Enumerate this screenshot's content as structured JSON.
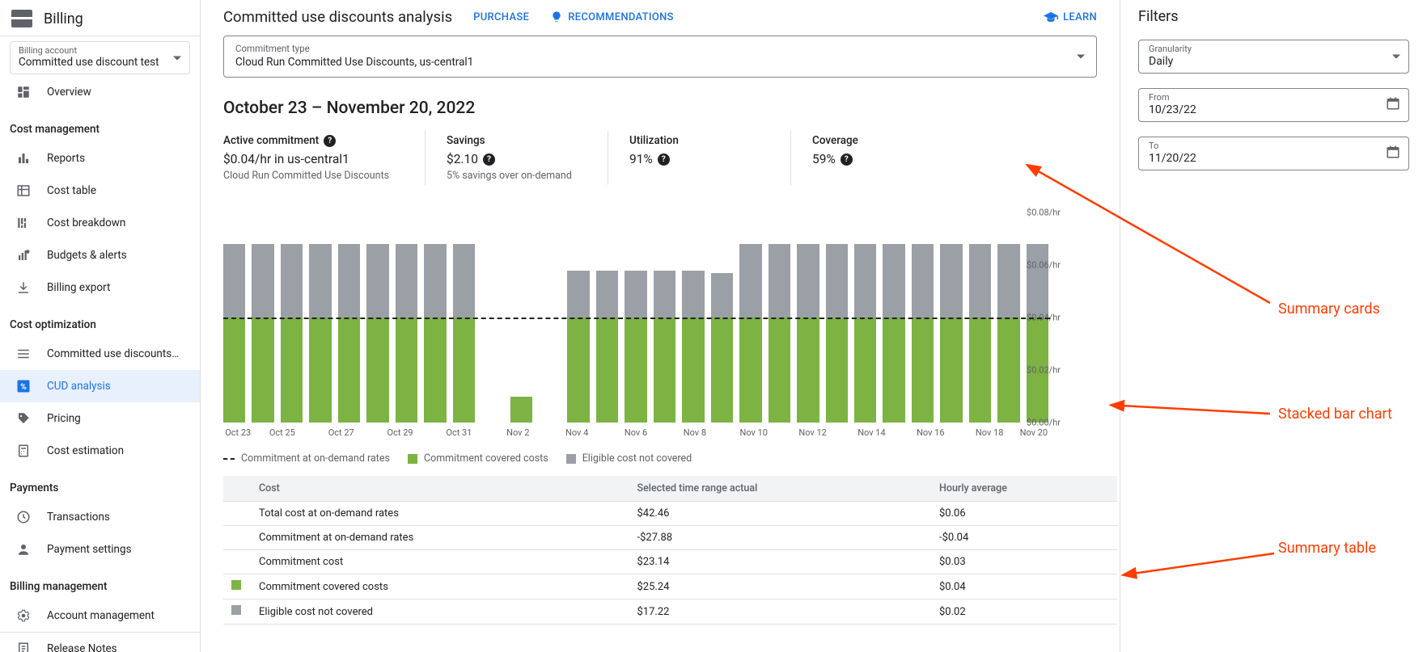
{
  "product": "Billing",
  "billing_account": {
    "label": "Billing account",
    "value": "Committed use discount test"
  },
  "nav": {
    "overview": "Overview",
    "sections": {
      "cost_mgmt": {
        "title": "Cost management",
        "items": {
          "reports": "Reports",
          "cost_table": "Cost table",
          "cost_breakdown": "Cost breakdown",
          "budgets": "Budgets & alerts",
          "export": "Billing export"
        }
      },
      "cost_opt": {
        "title": "Cost optimization",
        "items": {
          "cud": "Committed use discounts…",
          "cud_analysis": "CUD analysis",
          "pricing": "Pricing",
          "cost_est": "Cost estimation"
        }
      },
      "payments": {
        "title": "Payments",
        "items": {
          "transactions": "Transactions",
          "payment_settings": "Payment settings"
        }
      },
      "billing_mgmt": {
        "title": "Billing management",
        "items": {
          "account_mgmt": "Account management"
        }
      }
    },
    "release_notes": "Release Notes"
  },
  "header": {
    "title": "Committed use discounts analysis",
    "purchase": "PURCHASE",
    "recommendations": "RECOMMENDATIONS",
    "learn": "LEARN"
  },
  "commitment_type": {
    "label": "Commitment type",
    "value": "Cloud Run Committed Use Discounts, us-central1"
  },
  "date_range_title": "October 23 – November 20, 2022",
  "cards": {
    "active": {
      "title": "Active commitment",
      "value": "$0.04/hr in us-central1",
      "sub": "Cloud Run Committed Use Discounts"
    },
    "savings": {
      "title": "Savings",
      "value": "$2.10",
      "sub": "5% savings over on-demand"
    },
    "utilization": {
      "title": "Utilization",
      "value": "91%"
    },
    "coverage": {
      "title": "Coverage",
      "value": "59%"
    }
  },
  "chart": {
    "type": "stacked-bar",
    "y_max": 0.08,
    "commitment_line": 0.04,
    "y_ticks": [
      "$0.08/hr",
      "$0.06/hr",
      "$0.04/hr",
      "$0.02/hr",
      "$0.00/hr"
    ],
    "colors": {
      "covered": "#7cb342",
      "not_covered": "#9aa0a6",
      "commitment_dash": "#202124",
      "background": "#ffffff"
    },
    "bars": [
      {
        "date": "Oct 23",
        "covered": 0.04,
        "not_covered": 0.028
      },
      {
        "date": "Oct 24",
        "covered": 0.04,
        "not_covered": 0.028
      },
      {
        "date": "Oct 25",
        "covered": 0.04,
        "not_covered": 0.028
      },
      {
        "date": "Oct 26",
        "covered": 0.04,
        "not_covered": 0.028
      },
      {
        "date": "Oct 27",
        "covered": 0.04,
        "not_covered": 0.028
      },
      {
        "date": "Oct 28",
        "covered": 0.04,
        "not_covered": 0.028
      },
      {
        "date": "Oct 29",
        "covered": 0.04,
        "not_covered": 0.028
      },
      {
        "date": "Oct 30",
        "covered": 0.04,
        "not_covered": 0.028
      },
      {
        "date": "Oct 31",
        "covered": 0.04,
        "not_covered": 0.028
      },
      {
        "date": "Nov 1",
        "covered": 0.0,
        "not_covered": 0.0
      },
      {
        "date": "Nov 2",
        "covered": 0.01,
        "not_covered": 0.0
      },
      {
        "date": "Nov 3",
        "covered": 0.0,
        "not_covered": 0.0
      },
      {
        "date": "Nov 4",
        "covered": 0.04,
        "not_covered": 0.018
      },
      {
        "date": "Nov 5",
        "covered": 0.04,
        "not_covered": 0.018
      },
      {
        "date": "Nov 6",
        "covered": 0.04,
        "not_covered": 0.018
      },
      {
        "date": "Nov 7",
        "covered": 0.04,
        "not_covered": 0.018
      },
      {
        "date": "Nov 8",
        "covered": 0.04,
        "not_covered": 0.018
      },
      {
        "date": "Nov 9",
        "covered": 0.04,
        "not_covered": 0.017
      },
      {
        "date": "Nov 10",
        "covered": 0.04,
        "not_covered": 0.028
      },
      {
        "date": "Nov 11",
        "covered": 0.04,
        "not_covered": 0.028
      },
      {
        "date": "Nov 12",
        "covered": 0.04,
        "not_covered": 0.028
      },
      {
        "date": "Nov 13",
        "covered": 0.04,
        "not_covered": 0.028
      },
      {
        "date": "Nov 14",
        "covered": 0.04,
        "not_covered": 0.028
      },
      {
        "date": "Nov 15",
        "covered": 0.04,
        "not_covered": 0.028
      },
      {
        "date": "Nov 16",
        "covered": 0.04,
        "not_covered": 0.028
      },
      {
        "date": "Nov 17",
        "covered": 0.04,
        "not_covered": 0.028
      },
      {
        "date": "Nov 18",
        "covered": 0.04,
        "not_covered": 0.028
      },
      {
        "date": "Nov 19",
        "covered": 0.04,
        "not_covered": 0.028
      },
      {
        "date": "Nov 20",
        "covered": 0.04,
        "not_covered": 0.028
      }
    ],
    "x_labels": [
      "Oct 23",
      "Oct 25",
      "Oct 27",
      "Oct 29",
      "Oct 31",
      "Nov 2",
      "Nov 4",
      "Nov 6",
      "Nov 8",
      "Nov 10",
      "Nov 12",
      "Nov 14",
      "Nov 16",
      "Nov 18",
      "Nov 20"
    ],
    "legend": {
      "commitment": "Commitment at on-demand rates",
      "covered": "Commitment covered costs",
      "not_covered": "Eligible cost not covered"
    }
  },
  "table": {
    "columns": {
      "cost": "Cost",
      "actual": "Selected time range actual",
      "hourly": "Hourly average"
    },
    "rows": [
      {
        "swatch": "",
        "label": "Total cost at on-demand rates",
        "actual": "$42.46",
        "hourly": "$0.06"
      },
      {
        "swatch": "dash",
        "label": "Commitment at on-demand rates",
        "actual": "-$27.88",
        "hourly": "-$0.04"
      },
      {
        "swatch": "",
        "label": "Commitment cost",
        "actual": "$23.14",
        "hourly": "$0.03"
      },
      {
        "swatch": "green",
        "label": "Commitment covered costs",
        "actual": "$25.24",
        "hourly": "$0.04"
      },
      {
        "swatch": "gray",
        "label": "Eligible cost not covered",
        "actual": "$17.22",
        "hourly": "$0.02"
      }
    ]
  },
  "filters": {
    "title": "Filters",
    "granularity": {
      "label": "Granularity",
      "value": "Daily"
    },
    "from": {
      "label": "From",
      "value": "10/23/22"
    },
    "to": {
      "label": "To",
      "value": "11/20/22"
    }
  },
  "annotations": {
    "cards": "Summary cards",
    "chart": "Stacked bar chart",
    "table": "Summary table"
  }
}
